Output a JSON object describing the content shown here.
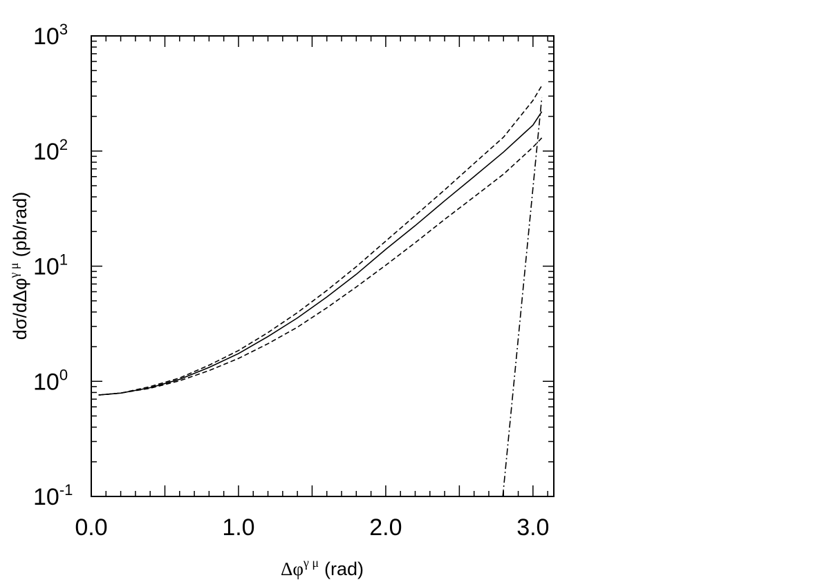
{
  "chart_data": {
    "type": "line",
    "title": "",
    "xlabel": {
      "main": "Δφ",
      "sup": "γ μ",
      "unit": "(rad)"
    },
    "ylabel": {
      "main": "dσ/dΔφ",
      "sup": "γ μ",
      "unit": "(pb/rad)"
    },
    "xlim": [
      0.0,
      3.14159
    ],
    "ylim": [
      0.1,
      1000
    ],
    "yscale": "log",
    "grid": false,
    "legend": "none",
    "x_ticks": [
      {
        "value": 0.0,
        "label": "0.0"
      },
      {
        "value": 1.0,
        "label": "1.0"
      },
      {
        "value": 2.0,
        "label": "2.0"
      },
      {
        "value": 3.0,
        "label": "3.0"
      }
    ],
    "y_ticks": [
      {
        "value": 0.1,
        "base": "10",
        "exp": "-1"
      },
      {
        "value": 1,
        "base": "10",
        "exp": "0"
      },
      {
        "value": 10,
        "base": "10",
        "exp": "1"
      },
      {
        "value": 100,
        "base": "10",
        "exp": "2"
      },
      {
        "value": 1000,
        "base": "10",
        "exp": "3"
      }
    ],
    "series": [
      {
        "style": "solid",
        "color": "#000000",
        "x": [
          0.05,
          0.2,
          0.4,
          0.6,
          0.8,
          1.0,
          1.2,
          1.4,
          1.6,
          1.8,
          2.0,
          2.2,
          2.4,
          2.6,
          2.8,
          3.0,
          3.06
        ],
        "y": [
          0.76,
          0.79,
          0.88,
          1.04,
          1.32,
          1.74,
          2.45,
          3.55,
          5.4,
          8.5,
          14.0,
          22.5,
          37.0,
          60.0,
          98.0,
          168.0,
          220.0
        ]
      },
      {
        "style": "dashed",
        "color": "#000000",
        "x": [
          0.05,
          0.2,
          0.4,
          0.6,
          0.8,
          1.0,
          1.2,
          1.4,
          1.6,
          1.8,
          2.0,
          2.2,
          2.4,
          2.6,
          2.8,
          3.0,
          3.06
        ],
        "y": [
          0.76,
          0.79,
          0.9,
          1.07,
          1.38,
          1.85,
          2.65,
          3.95,
          6.15,
          9.9,
          16.5,
          27.5,
          46.0,
          78.0,
          132.0,
          275.0,
          370.0
        ]
      },
      {
        "style": "dashed",
        "color": "#000000",
        "x": [
          0.05,
          0.2,
          0.4,
          0.6,
          0.8,
          1.0,
          1.2,
          1.4,
          1.6,
          1.8,
          2.0,
          2.2,
          2.4,
          2.6,
          2.8,
          3.0,
          3.06
        ],
        "y": [
          0.76,
          0.79,
          0.87,
          1.01,
          1.24,
          1.58,
          2.12,
          2.95,
          4.35,
          6.6,
          10.2,
          16.0,
          25.5,
          40.0,
          63.0,
          108.0,
          130.0
        ]
      },
      {
        "style": "dashdot",
        "color": "#000000",
        "x": [
          2.795,
          3.06
        ],
        "y": [
          0.1,
          290.0
        ]
      }
    ]
  }
}
